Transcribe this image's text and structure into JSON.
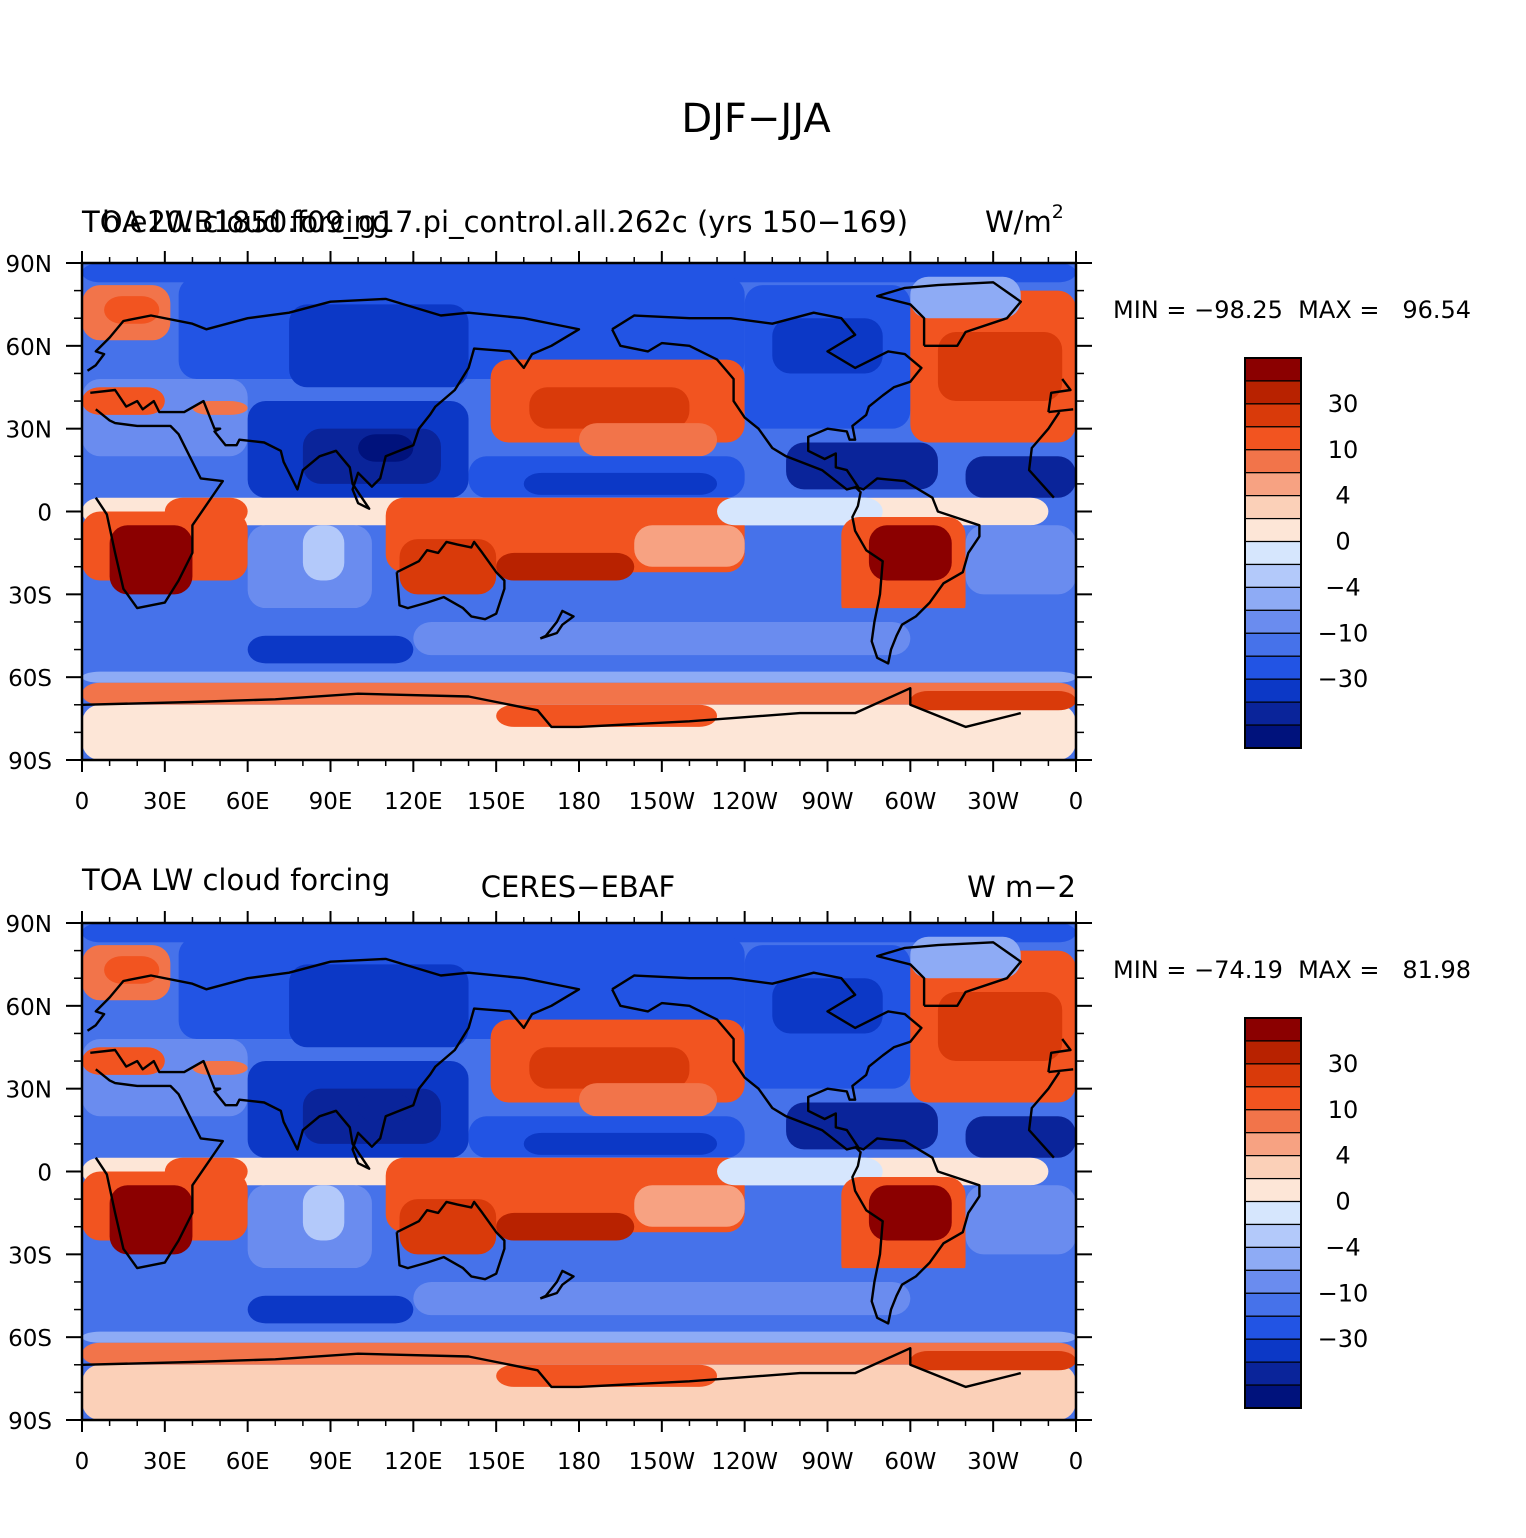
{
  "main_title": "DJF−JJA",
  "chart_data": [
    {
      "type": "heatmap",
      "title_left": "TOA LW cloud forcing",
      "title_left_overlap": "b.e20.B1850.f09_g17.pi_control.all.262c (yrs 150−169)",
      "title_right": "W/m",
      "title_right_sup": "2",
      "stats": "MIN = −98.25  MAX =   96.54",
      "min": -98.25,
      "max": 96.54,
      "x_ticks": [
        "0",
        "30E",
        "60E",
        "90E",
        "120E",
        "150E",
        "180",
        "150W",
        "120W",
        "90W",
        "60W",
        "30W",
        "0"
      ],
      "y_ticks": [
        "90N",
        "60N",
        "30N",
        "0",
        "30S",
        "60S",
        "90S"
      ],
      "xlim": [
        0,
        360
      ],
      "ylim": [
        -90,
        90
      ]
    },
    {
      "type": "heatmap",
      "title_left": "TOA LW cloud forcing",
      "title_center": "CERES−EBAF",
      "title_right": "W m−2",
      "stats": "MIN = −74.19  MAX =   81.98",
      "min": -74.19,
      "max": 81.98,
      "x_ticks": [
        "0",
        "30E",
        "60E",
        "90E",
        "120E",
        "150E",
        "180",
        "150W",
        "120W",
        "90W",
        "60W",
        "30W",
        "0"
      ],
      "y_ticks": [
        "90N",
        "60N",
        "30N",
        "0",
        "30S",
        "60S",
        "90S"
      ],
      "xlim": [
        0,
        360
      ],
      "ylim": [
        -90,
        90
      ]
    }
  ],
  "colorbar": {
    "colors": [
      "#8b0000",
      "#b82200",
      "#d93a0a",
      "#f25420",
      "#f2744a",
      "#f7a282",
      "#fbd0b8",
      "#fde6d7",
      "#d6e6fd",
      "#b3c9fa",
      "#8eabf5",
      "#6a8cef",
      "#4672ea",
      "#2254e4",
      "#0c38c6",
      "#0a249a",
      "#00127c"
    ],
    "labels": [
      "30",
      "10",
      "4",
      "0",
      "−4",
      "−10",
      "−30"
    ]
  },
  "land_color": "#000000"
}
